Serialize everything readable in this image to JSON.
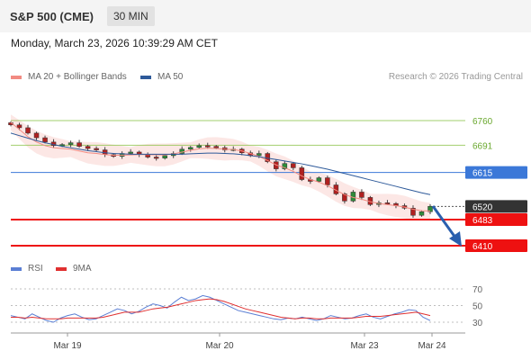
{
  "header": {
    "instrument": "S&P 500 (CME)",
    "interval": "30 MIN",
    "datetime": "Monday, March 23, 2026 10:39:29 AM CET"
  },
  "legend_main": [
    {
      "label": "MA 20 + Bollinger Bands",
      "color": "#f28b82"
    },
    {
      "label": "MA 50",
      "color": "#2e5a9a"
    }
  ],
  "credit": "Research © 2026 Trading Central",
  "legend_rsi": [
    {
      "label": "RSI",
      "color": "#5b7fd4"
    },
    {
      "label": "9MA",
      "color": "#e03030"
    }
  ],
  "chart_data": {
    "type": "candlestick",
    "x_ticks": [
      "Mar 19",
      "Mar 20",
      "Mar 23",
      "Mar 24"
    ],
    "price_levels": [
      {
        "value": 6760,
        "label": "6760",
        "color": "#8bc34a",
        "kind": "target"
      },
      {
        "value": 6691,
        "label": "6691",
        "color": "#8bc34a",
        "kind": "target"
      },
      {
        "value": 6615,
        "label": "6615",
        "color": "#3b78d8",
        "kind": "pivot"
      },
      {
        "value": 6520,
        "label": "6520",
        "color": "#333333",
        "kind": "last"
      },
      {
        "value": 6483,
        "label": "6483",
        "color": "#ee1111",
        "kind": "support"
      },
      {
        "value": 6410,
        "label": "6410",
        "color": "#ee1111",
        "kind": "support"
      }
    ],
    "close_path": [
      6748,
      6740,
      6725,
      6712,
      6700,
      6690,
      6693,
      6698,
      6688,
      6682,
      6678,
      6665,
      6660,
      6668,
      6672,
      6665,
      6658,
      6655,
      6662,
      6668,
      6680,
      6685,
      6690,
      6688,
      6684,
      6678,
      6680,
      6670,
      6662,
      6668,
      6645,
      6625,
      6640,
      6628,
      6595,
      6590,
      6600,
      6580,
      6555,
      6535,
      6560,
      6545,
      6525,
      6530,
      6528,
      6522,
      6515,
      6495,
      6505,
      6520
    ],
    "ma20_path": [
      6755,
      6735,
      6715,
      6700,
      6690,
      6684,
      6682,
      6680,
      6675,
      6670,
      6668,
      6665,
      6663,
      6663,
      6664,
      6665,
      6665,
      6664,
      6664,
      6667,
      6672,
      6677,
      6681,
      6683,
      6682,
      6680,
      6679,
      6675,
      6668,
      6660,
      6648,
      6636,
      6628,
      6618,
      6605,
      6595,
      6588,
      6578,
      6565,
      6553,
      6545,
      6540,
      6533,
      6528,
      6525,
      6522,
      6518,
      6512,
      6508,
      6507
    ],
    "ma50_path": [
      6725,
      6718,
      6711,
      6704,
      6698,
      6693,
      6688,
      6684,
      6680,
      6676,
      6673,
      6670,
      6668,
      6667,
      6666,
      6666,
      6666,
      6666,
      6666,
      6666,
      6666,
      6667,
      6668,
      6669,
      6669,
      6668,
      6667,
      6665,
      6662,
      6659,
      6655,
      6651,
      6647,
      6643,
      6639,
      6634,
      6629,
      6624,
      6618,
      6612,
      6606,
      6600,
      6594,
      6588,
      6582,
      6576,
      6570,
      6564,
      6558,
      6553
    ],
    "rsi": {
      "y_ticks": [
        70,
        50,
        30
      ],
      "rsi_path": [
        38,
        36,
        34,
        40,
        36,
        32,
        30,
        35,
        38,
        40,
        36,
        33,
        34,
        38,
        42,
        46,
        44,
        40,
        43,
        48,
        52,
        50,
        47,
        54,
        60,
        56,
        58,
        62,
        60,
        56,
        52,
        48,
        44,
        42,
        40,
        38,
        36,
        34,
        33,
        35,
        34,
        36,
        34,
        32,
        34,
        38,
        36,
        34,
        35,
        38,
        40,
        36,
        34,
        37,
        40,
        42,
        45,
        44,
        36,
        32
      ],
      "ma_path": [
        36,
        36,
        35,
        36,
        35,
        34,
        34,
        34,
        35,
        35,
        35,
        35,
        35,
        36,
        38,
        40,
        42,
        42,
        42,
        44,
        46,
        47,
        48,
        50,
        52,
        54,
        56,
        57,
        58,
        57,
        55,
        52,
        49,
        46,
        44,
        42,
        40,
        38,
        36,
        35,
        34,
        35,
        35,
        34,
        34,
        35,
        35,
        35,
        35,
        36,
        37,
        37,
        37,
        38,
        39,
        40,
        41,
        42,
        40,
        38
      ]
    }
  }
}
